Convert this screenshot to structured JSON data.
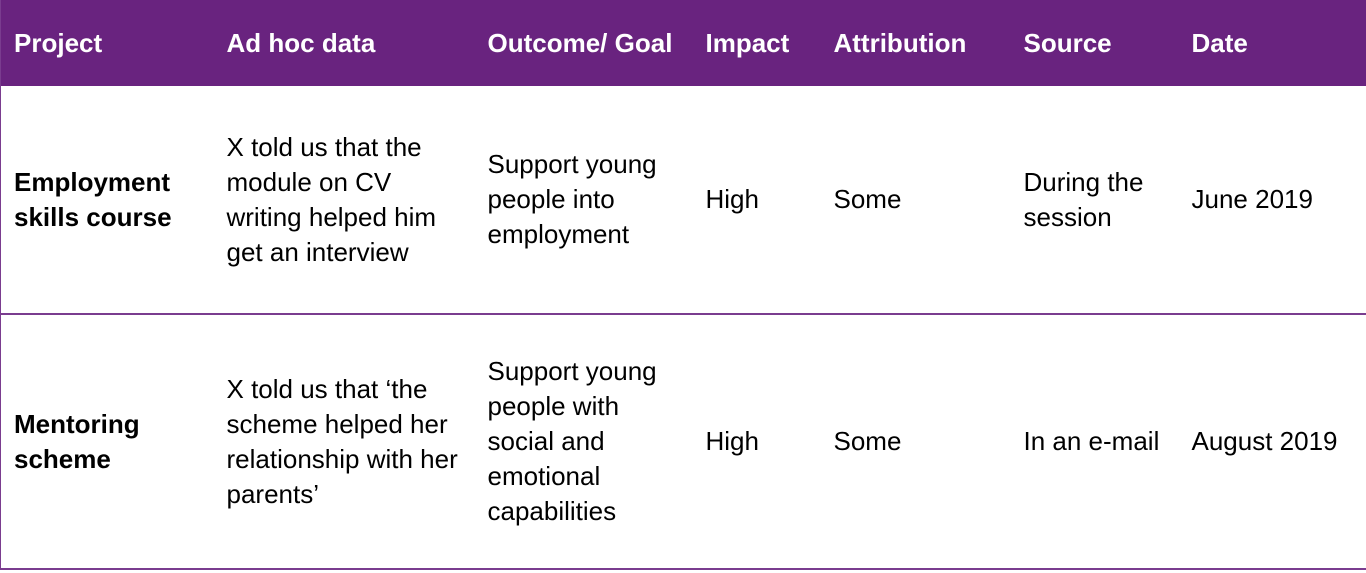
{
  "table": {
    "header": [
      "Project",
      "Ad hoc data",
      "Outcome/ Goal",
      "Impact",
      "Attribution",
      "Source",
      "Date"
    ],
    "rows": [
      [
        "Employment skills course",
        "X told us that the module on CV writing helped him get an interview",
        "Support young people into employment",
        "High",
        "Some",
        "During the session",
        "June 2019"
      ],
      [
        "Mentoring scheme",
        "X told us that ‘the scheme helped her relationship with her parents’",
        "Support young people with social and emotional capabilities",
        "High",
        "Some",
        "In an e-mail",
        "August 2019"
      ]
    ]
  }
}
